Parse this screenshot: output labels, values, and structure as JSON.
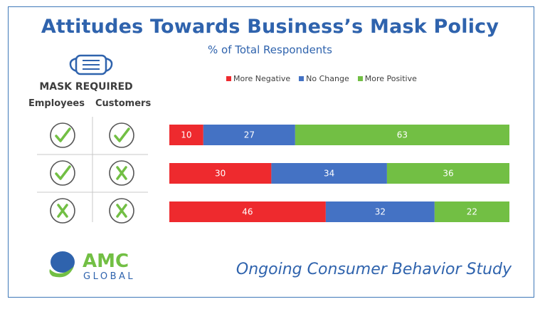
{
  "title": "Attitudes Towards Business’s Mask Policy",
  "subtitle": "% of Total Respondents",
  "mask_label": "MASK REQUIRED",
  "columns": {
    "employees": "Employees",
    "customers": "Customers"
  },
  "icons": [
    "mask-icon",
    "check-icon",
    "x-icon"
  ],
  "policy_rows": [
    {
      "employees": "check",
      "customers": "check"
    },
    {
      "employees": "check",
      "customers": "x"
    },
    {
      "employees": "x",
      "customers": "x"
    }
  ],
  "colors": {
    "negative": "#ee2a2e",
    "no_change": "#4472c4",
    "positive": "#72bf44",
    "title": "#2f63ad"
  },
  "chart_data": {
    "type": "bar",
    "orientation": "horizontal",
    "stacked": true,
    "legend_position": "top",
    "grid": false,
    "xlim": [
      0,
      100
    ],
    "series": [
      {
        "name": "More Negative",
        "values": [
          10,
          30,
          46
        ],
        "color": "#ee2a2e"
      },
      {
        "name": "No Change",
        "values": [
          27,
          34,
          32
        ],
        "color": "#4472c4"
      },
      {
        "name": "More Positive",
        "values": [
          63,
          36,
          22
        ],
        "color": "#72bf44"
      }
    ]
  },
  "logo": {
    "brand": "AMC",
    "sub": "GLOBAL"
  },
  "footer": "Ongoing Consumer Behavior Study"
}
